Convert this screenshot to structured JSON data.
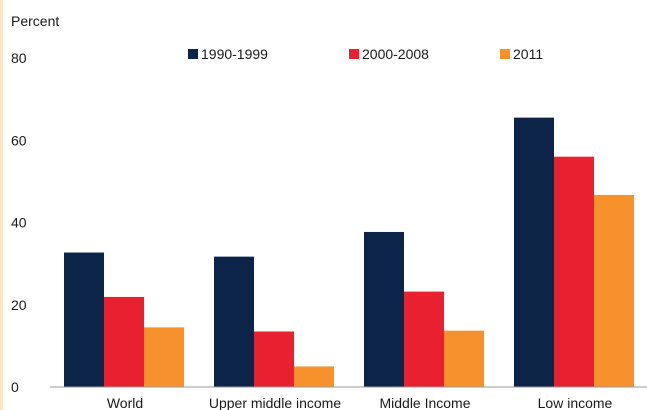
{
  "chart_data": {
    "type": "bar",
    "ylabel": "Percent",
    "ylim": [
      0,
      80
    ],
    "yticks": [
      0,
      20,
      40,
      60,
      80
    ],
    "grid": false,
    "legend_position": "top",
    "categories": [
      "World",
      "Upper middle income",
      "Middle Income",
      "Low income"
    ],
    "series": [
      {
        "name": "1990-1999",
        "color": "#0b2447",
        "values": [
          32.7,
          31.7,
          37.7,
          65.5
        ]
      },
      {
        "name": "2000-2008",
        "color": "#e8202f",
        "values": [
          21.9,
          13.5,
          23.2,
          56.0
        ]
      },
      {
        "name": "2011",
        "color": "#f7912c",
        "values": [
          14.5,
          5.0,
          13.7,
          46.7
        ]
      }
    ]
  }
}
